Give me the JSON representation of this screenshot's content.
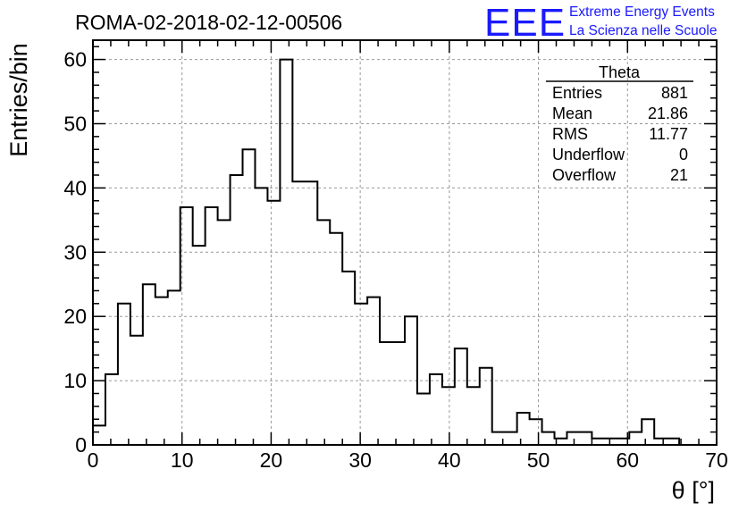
{
  "header": {
    "run_title": "ROMA-02-2018-02-12-00506",
    "logo": "EEE",
    "brand_line1": "Extreme Energy Events",
    "brand_line2": "La Scienza nelle Scuole",
    "brand_color": "#1a1aff"
  },
  "stats_box": {
    "name": "Theta",
    "rows": [
      {
        "label": "Entries",
        "value": "881"
      },
      {
        "label": "Mean",
        "value": "21.86"
      },
      {
        "label": "RMS",
        "value": "11.77"
      },
      {
        "label": "Underflow",
        "value": "0"
      },
      {
        "label": "Overflow",
        "value": "21"
      }
    ]
  },
  "chart_data": {
    "type": "histogram",
    "xlabel": "θ [°]",
    "ylabel": "Entries/bin",
    "xlim": [
      0,
      70
    ],
    "ylim": [
      0,
      63
    ],
    "bin_width": 1.4,
    "bin_edges_start": 0,
    "values": [
      3,
      11,
      22,
      17,
      25,
      23,
      24,
      37,
      31,
      37,
      35,
      42,
      46,
      40,
      38,
      60,
      41,
      41,
      35,
      33,
      27,
      22,
      23,
      16,
      16,
      20,
      8,
      11,
      9,
      15,
      9,
      12,
      2,
      2,
      5,
      4,
      2,
      1,
      2,
      2,
      1,
      1,
      1,
      2,
      4,
      1,
      1,
      0,
      0,
      0
    ],
    "x_ticks": [
      0,
      10,
      20,
      30,
      40,
      50,
      60,
      70
    ],
    "y_ticks": [
      0,
      10,
      20,
      30,
      40,
      50,
      60
    ],
    "grid": true,
    "line_color": "#000000",
    "grid_color": "#999999"
  }
}
